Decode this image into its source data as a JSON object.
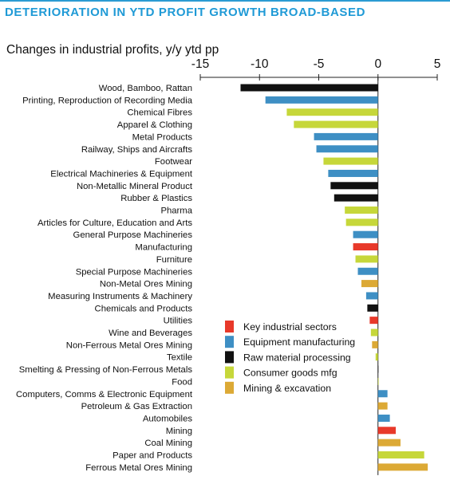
{
  "header": {
    "title": "DETERIORATION IN YTD PROFIT GROWTH BROAD-BASED",
    "subtitle": "Changes in industrial profits, y/y ytd pp"
  },
  "colors": {
    "title": "#1f9ad6",
    "Key industrial sectors": "#e8392a",
    "Equipment manufacturing": "#3e8fc4",
    "Raw material processing": "#111111",
    "Consumer goods mfg": "#c6d73a",
    "Mining & excavation": "#dca935"
  },
  "chart_data": {
    "type": "bar",
    "orientation": "horizontal",
    "title": "Changes in industrial profits, y/y ytd pp",
    "xlim": [
      -15,
      5
    ],
    "xticks": [
      "-15",
      "-10",
      "-5",
      "0",
      "5"
    ],
    "legend_position": "center-right",
    "legend": [
      "Key industrial sectors",
      "Equipment manufacturing",
      "Raw material processing",
      "Consumer goods mfg",
      "Mining & excavation"
    ],
    "categories": [
      "Wood, Bamboo, Rattan",
      "Printing, Reproduction of Recording Media",
      "Chemical Fibres",
      "Apparel & Clothing",
      "Metal Products",
      "Railway, Ships and Aircrafts",
      "Footwear",
      "Electrical Machineries & Equipment",
      "Non-Metallic Mineral Product",
      "Rubber & Plastics",
      "Pharma",
      "Articles for Culture, Education and Arts",
      "General Purpose Machineries",
      "Manufacturing",
      "Furniture",
      "Special Purpose Machineries",
      "Non-Metal Ores Mining",
      "Measuring Instruments & Machinery",
      "Chemicals and Products",
      "Utilities",
      "Wine and Beverages",
      "Non-Ferrous Metal Ores Mining",
      "Textile",
      "Smelting & Pressing of Non-Ferrous Metals",
      "Food",
      "Computers, Comms & Electronic Equipment",
      "Petroleum & Gas Extraction",
      "Automobiles",
      "Mining",
      "Coal Mining",
      "Paper and Products",
      "Ferrous Metal Ores Mining"
    ],
    "values": [
      -11.6,
      -9.5,
      -7.7,
      -7.1,
      -5.4,
      -5.2,
      -4.6,
      -4.2,
      -4.0,
      -3.7,
      -2.8,
      -2.7,
      -2.1,
      -2.1,
      -1.9,
      -1.7,
      -1.4,
      -1.0,
      -0.9,
      -0.7,
      -0.6,
      -0.5,
      -0.2,
      0.0,
      0.05,
      0.8,
      0.8,
      1.0,
      1.5,
      1.9,
      3.9,
      4.2
    ],
    "groups": [
      "Raw material processing",
      "Equipment manufacturing",
      "Consumer goods mfg",
      "Consumer goods mfg",
      "Equipment manufacturing",
      "Equipment manufacturing",
      "Consumer goods mfg",
      "Equipment manufacturing",
      "Raw material processing",
      "Raw material processing",
      "Consumer goods mfg",
      "Consumer goods mfg",
      "Equipment manufacturing",
      "Key industrial sectors",
      "Consumer goods mfg",
      "Equipment manufacturing",
      "Mining & excavation",
      "Equipment manufacturing",
      "Raw material processing",
      "Key industrial sectors",
      "Consumer goods mfg",
      "Mining & excavation",
      "Consumer goods mfg",
      "Raw material processing",
      "Consumer goods mfg",
      "Equipment manufacturing",
      "Mining & excavation",
      "Equipment manufacturing",
      "Key industrial sectors",
      "Mining & excavation",
      "Consumer goods mfg",
      "Mining & excavation"
    ]
  }
}
